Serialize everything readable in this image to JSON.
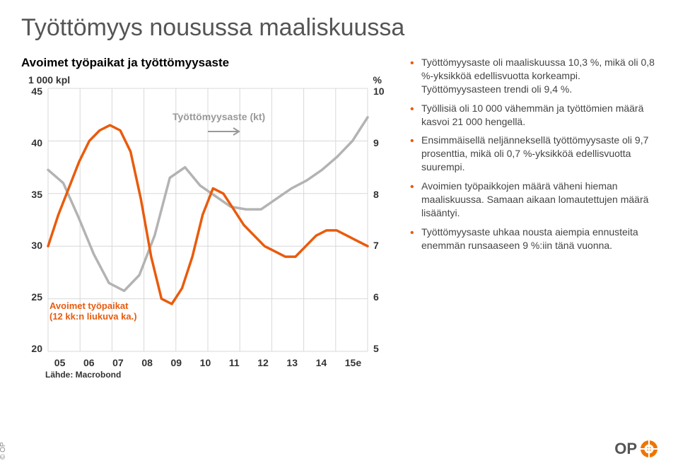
{
  "page": {
    "title": "Työttömyys nousussa maaliskuussa"
  },
  "chart": {
    "type": "line",
    "title": "Avoimet työpaikat ja työttömyysaste",
    "y_left_label": "1 000 kpl",
    "y_right_label": "%",
    "background_color": "#ffffff",
    "grid_color": "#d8d8d8",
    "y_left": {
      "min": 20,
      "max": 45,
      "ticks": [
        45,
        40,
        35,
        30,
        25,
        20
      ]
    },
    "y_right": {
      "min": 5,
      "max": 10,
      "ticks": [
        10,
        9,
        8,
        7,
        6,
        5
      ]
    },
    "x_labels": [
      "05",
      "06",
      "07",
      "08",
      "09",
      "10",
      "11",
      "12",
      "13",
      "14",
      "15e"
    ],
    "series_rate": {
      "name": "Työttömyysaste (kt)",
      "color": "#b3b3b3",
      "line_width": 3.5,
      "points_pct": [
        8.45,
        8.2,
        7.55,
        6.85,
        6.3,
        6.15,
        6.45,
        7.2,
        8.3,
        8.5,
        8.15,
        7.95,
        7.75,
        7.7,
        7.7,
        7.9,
        8.1,
        8.25,
        8.45,
        8.7,
        9.0,
        9.45
      ]
    },
    "series_vac": {
      "name": "Avoimet työpaikat (12 kk:n liukuva ka.)",
      "color": "#e95b0c",
      "line_width": 3.5,
      "points_k": [
        30,
        33,
        35.5,
        38,
        40,
        41,
        41.5,
        41,
        39,
        34.5,
        29,
        25,
        24.5,
        26,
        29,
        33,
        35.5,
        35,
        33.5,
        32,
        31,
        30,
        29.5,
        29,
        29,
        30,
        31,
        31.5,
        31.5,
        31,
        30.5,
        30
      ]
    },
    "annot_rate": "Työttömyysaste (kt)",
    "annot_vac_line1": "Avoimet työpaikat",
    "annot_vac_line2": "(12 kk:n liukuva ka.)",
    "source": "Lähde: Macrobond"
  },
  "bullets": [
    "Työttömyysaste oli maaliskuussa 10,3 %, mikä oli 0,8 %-yksikköä edellisvuotta korkeampi. Työttömyysasteen trendi oli 9,4 %.",
    "Työllisiä oli 10 000 vähemmän ja työttömien määrä kasvoi 21 000 hengellä.",
    "Ensimmäisellä neljänneksellä työttömyysaste oli 9,7 prosenttia, mikä oli 0,7 %-yksikköä edellisvuotta suurempi.",
    "Avoimien työpaikkojen määrä väheni hieman maaliskuussa. Samaan aikaan lomautettujen määrä lisääntyi.",
    "Työttömyysaste uhkaa nousta aiempia ennusteita enemmän runsaaseen 9 %:iin tänä vuonna."
  ],
  "footer": "© OP",
  "logo": {
    "text": "OP",
    "fill": "#ee7600"
  }
}
